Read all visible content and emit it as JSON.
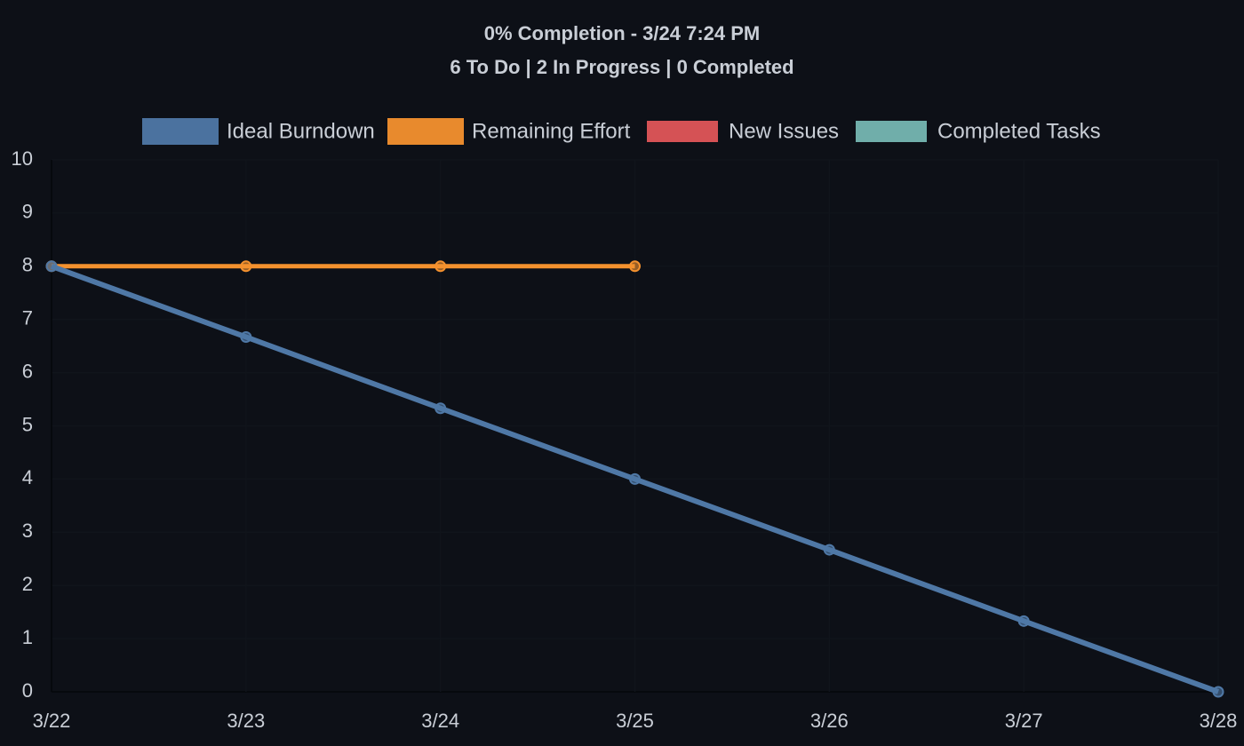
{
  "chart_data": {
    "type": "line",
    "title": "0% Completion - 3/24 7:24 PM",
    "subtitle": "6 To Do | 2 In Progress | 0 Completed",
    "categories": [
      "3/22",
      "3/23",
      "3/24",
      "3/25",
      "3/26",
      "3/27",
      "3/28"
    ],
    "series": [
      {
        "name": "Ideal Burndown",
        "color": "#4f78a6",
        "values": [
          8,
          6.67,
          5.33,
          4,
          2.67,
          1.33,
          0
        ]
      },
      {
        "name": "Remaining Effort",
        "color": "#f4912e",
        "values": [
          8,
          8,
          8,
          8,
          null,
          null,
          null
        ]
      },
      {
        "name": "New Issues",
        "color": "#e05659",
        "values": [
          null,
          null,
          null,
          null,
          null,
          null,
          null
        ]
      },
      {
        "name": "Completed Tasks",
        "color": "#76b7b2",
        "values": [
          null,
          null,
          null,
          null,
          null,
          null,
          null
        ]
      }
    ],
    "ylim": [
      0,
      10
    ],
    "yticks": [
      0,
      1,
      2,
      3,
      4,
      5,
      6,
      7,
      8,
      9,
      10
    ],
    "grid": true,
    "legend": "top"
  }
}
